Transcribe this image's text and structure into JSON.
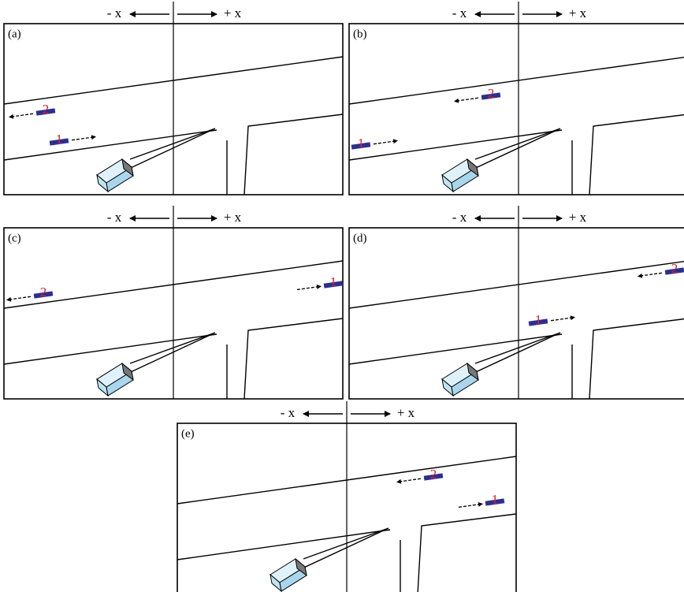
{
  "panels": [
    {
      "label": "(a)",
      "axis_minus": "- x",
      "axis_plus": "+ x",
      "vehicles": [
        {
          "label": "2"
        },
        {
          "label": "1"
        }
      ]
    },
    {
      "label": "(b)",
      "axis_minus": "- x",
      "axis_plus": "+ x",
      "vehicles": [
        {
          "label": "1"
        },
        {
          "label": "2"
        }
      ]
    },
    {
      "label": "(c)",
      "axis_minus": "- x",
      "axis_plus": "+ x",
      "vehicles": [
        {
          "label": "2"
        },
        {
          "label": "1"
        }
      ]
    },
    {
      "label": "(d)",
      "axis_minus": "- x",
      "axis_plus": "+ x",
      "vehicles": [
        {
          "label": "2"
        },
        {
          "label": "1"
        }
      ]
    },
    {
      "label": "(e)",
      "axis_minus": "- x",
      "axis_plus": "+ x",
      "vehicles": [
        {
          "label": "2"
        },
        {
          "label": "1"
        }
      ]
    }
  ]
}
